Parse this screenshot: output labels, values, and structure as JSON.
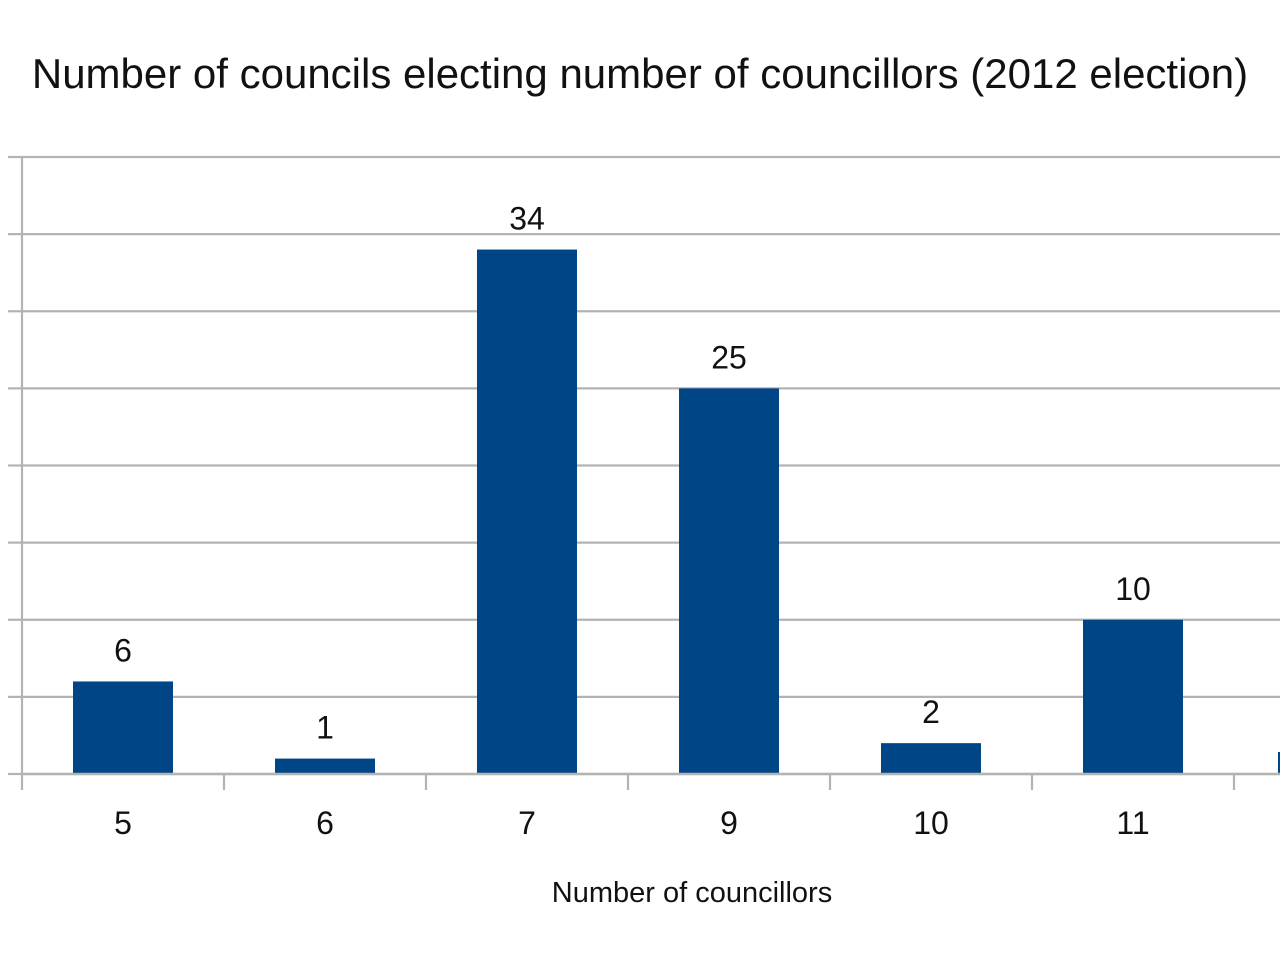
{
  "chart_data": {
    "type": "bar",
    "title": "Number of councils electing number of councillors (2012 election)",
    "xlabel": "Number of councillors",
    "ylabel": "",
    "categories": [
      "5",
      "6",
      "7",
      "9",
      "10",
      "11"
    ],
    "values": [
      6,
      1,
      34,
      25,
      2,
      10
    ],
    "ylim": [
      0,
      40
    ],
    "grid": true,
    "legend": "none",
    "colors": {
      "bar": "#004586",
      "grid": "#b3b3b3",
      "axis": "#b3b3b3"
    }
  }
}
